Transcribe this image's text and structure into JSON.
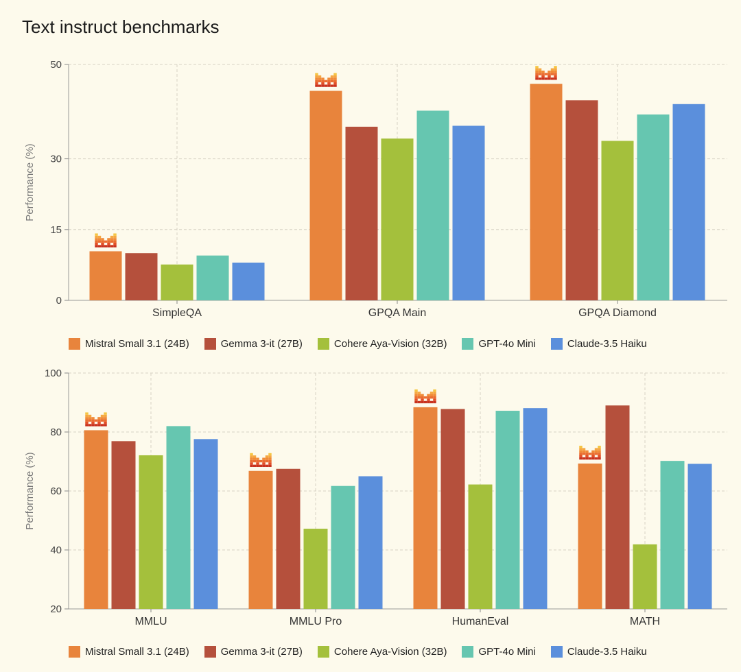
{
  "page": {
    "title": "Text instruct benchmarks"
  },
  "colors": {
    "Mistral Small 3.1 (24B)": "#e8843c",
    "Gemma 3-it (27B)": "#b5503c",
    "Cohere Aya-Vision (32B)": "#a4c03c",
    "GPT-4o Mini": "#66c6b0",
    "Claude-3.5 Haiku": "#5b8fdc"
  },
  "icons": {
    "winner_marker": "mistral-logo-icon"
  },
  "chart_data": [
    {
      "type": "bar",
      "title": "",
      "xlabel": "",
      "ylabel": "Performance (%)",
      "ylim": [
        0,
        50
      ],
      "yticks": [
        0,
        15,
        30,
        50
      ],
      "grid": true,
      "legend_position": "bottom",
      "categories": [
        "SimpleQA",
        "GPQA Main",
        "GPQA Diamond"
      ],
      "series": [
        {
          "name": "Mistral Small 3.1 (24B)",
          "values": [
            10.4,
            44.4,
            45.9
          ]
        },
        {
          "name": "Gemma 3-it (27B)",
          "values": [
            10.0,
            36.8,
            42.4
          ]
        },
        {
          "name": "Cohere Aya-Vision (32B)",
          "values": [
            7.6,
            34.3,
            33.8
          ]
        },
        {
          "name": "GPT-4o Mini",
          "values": [
            9.5,
            40.2,
            39.4
          ]
        },
        {
          "name": "Claude-3.5 Haiku",
          "values": [
            8.0,
            37.0,
            41.6
          ]
        }
      ],
      "highlight_series": "Mistral Small 3.1 (24B)"
    },
    {
      "type": "bar",
      "title": "",
      "xlabel": "",
      "ylabel": "Performance (%)",
      "ylim": [
        20,
        100
      ],
      "yticks": [
        20,
        40,
        60,
        80,
        100
      ],
      "grid": true,
      "legend_position": "bottom",
      "categories": [
        "MMLU",
        "MMLU Pro",
        "HumanEval",
        "MATH"
      ],
      "series": [
        {
          "name": "Mistral Small 3.1 (24B)",
          "values": [
            80.6,
            66.8,
            88.4,
            69.3
          ]
        },
        {
          "name": "Gemma 3-it (27B)",
          "values": [
            76.9,
            67.5,
            87.8,
            89.0
          ]
        },
        {
          "name": "Cohere Aya-Vision (32B)",
          "values": [
            72.1,
            47.2,
            62.2,
            41.9
          ]
        },
        {
          "name": "GPT-4o Mini",
          "values": [
            82.0,
            61.7,
            87.2,
            70.2
          ]
        },
        {
          "name": "Claude-3.5 Haiku",
          "values": [
            77.6,
            65.0,
            88.1,
            69.2
          ]
        }
      ],
      "highlight_series": "Mistral Small 3.1 (24B)"
    }
  ]
}
